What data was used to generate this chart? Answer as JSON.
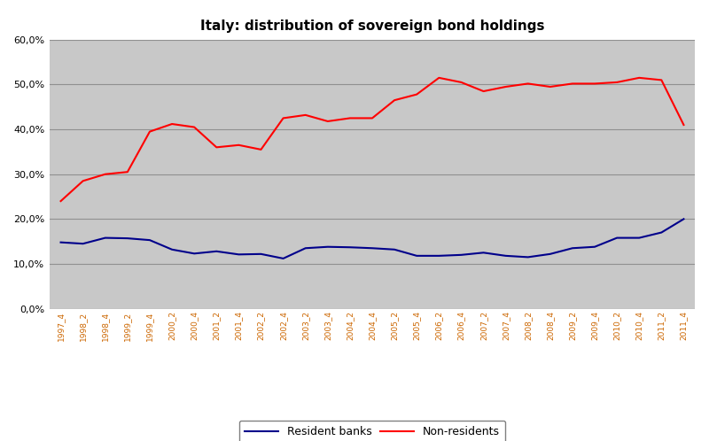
{
  "title": "Italy: distribution of sovereign bond holdings",
  "plot_bg_color": "#c8c8c8",
  "fig_bg_color": "#ffffff",
  "x_labels": [
    "1997_4",
    "1998_2",
    "1998_4",
    "1999_2",
    "1999_4",
    "2000_2",
    "2000_4",
    "2001_2",
    "2001_4",
    "2002_2",
    "2002_4",
    "2003_2",
    "2003_4",
    "2004_2",
    "2004_4",
    "2005_2",
    "2005_4",
    "2006_2",
    "2006_4",
    "2007_2",
    "2007_4",
    "2008_2",
    "2008_4",
    "2009_2",
    "2009_4",
    "2010_2",
    "2010_4",
    "2011_2",
    "2011_4"
  ],
  "resident_banks": [
    14.8,
    14.5,
    15.8,
    15.7,
    15.3,
    13.2,
    12.3,
    12.8,
    12.1,
    12.2,
    11.2,
    13.5,
    13.8,
    13.7,
    13.5,
    13.2,
    11.8,
    11.8,
    12.0,
    12.5,
    11.8,
    11.5,
    12.2,
    13.5,
    13.8,
    15.8,
    15.8,
    17.0,
    20.0
  ],
  "non_residents": [
    24.0,
    28.5,
    30.0,
    30.5,
    39.5,
    41.2,
    40.5,
    36.0,
    36.5,
    35.5,
    42.5,
    43.2,
    41.8,
    42.5,
    42.5,
    46.5,
    47.8,
    51.5,
    50.5,
    48.5,
    49.5,
    50.2,
    49.5,
    50.2,
    50.2,
    50.5,
    51.5,
    51.0,
    41.0
  ],
  "ylim": [
    0,
    60
  ],
  "yticks": [
    0,
    10,
    20,
    30,
    40,
    50,
    60
  ],
  "legend_labels": [
    "Resident banks",
    "Non-residents"
  ],
  "line_colors": [
    "#00008B",
    "#FF0000"
  ],
  "line_width": 1.5,
  "grid_color": "#909090",
  "title_fontsize": 11
}
